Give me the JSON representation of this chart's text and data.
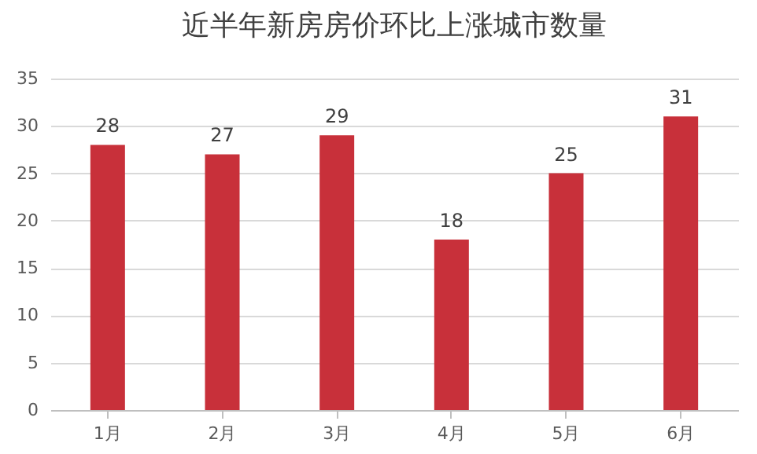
{
  "chart_data": {
    "type": "bar",
    "title": "近半年新房房价环比上涨城市数量",
    "categories": [
      "1月",
      "2月",
      "3月",
      "4月",
      "5月",
      "6月"
    ],
    "values": [
      28,
      27,
      29,
      18,
      25,
      31
    ],
    "color": "#c8303a",
    "ylim": [
      0,
      35
    ],
    "yticks": [
      0,
      5,
      10,
      15,
      20,
      25,
      30,
      35
    ],
    "grid": "y",
    "data_labels": true
  }
}
